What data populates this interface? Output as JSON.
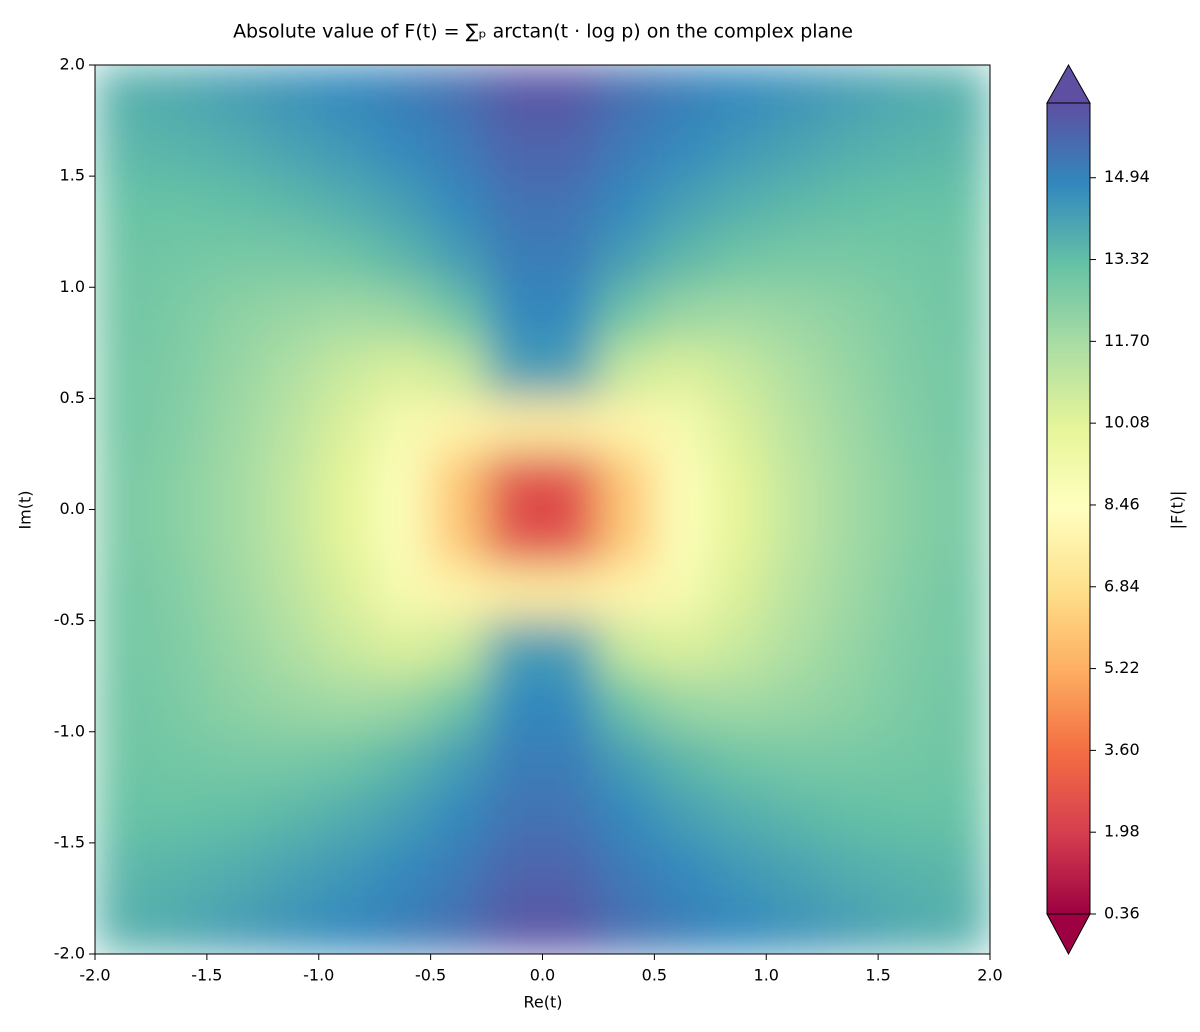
{
  "chart_data": {
    "type": "heatmap",
    "title": "Absolute value of F(t) = ∑ₚ arctan(t · log p) on the complex plane",
    "x_label": "Re(t)",
    "y_label": "Im(t)",
    "colorbar_label": "|F(t)|",
    "x": [
      -1.875,
      -1.625,
      -1.375,
      -1.125,
      -0.875,
      -0.625,
      -0.375,
      -0.125,
      0.125,
      0.375,
      0.625,
      0.875,
      1.125,
      1.375,
      1.625,
      1.875
    ],
    "y": [
      1.875,
      1.625,
      1.375,
      1.125,
      0.875,
      0.625,
      0.375,
      0.125,
      -0.125,
      -0.375,
      -0.625,
      -0.875,
      -1.125,
      -1.375,
      -1.625,
      -1.875
    ],
    "z": [
      [
        13.7,
        13.9,
        14.2,
        14.5,
        14.8,
        15.1,
        15.5,
        16.2,
        16.2,
        15.5,
        15.1,
        14.8,
        14.5,
        14.2,
        13.9,
        13.7
      ],
      [
        13.5,
        13.6,
        13.8,
        14.1,
        14.4,
        14.8,
        15.2,
        15.8,
        15.8,
        15.2,
        14.8,
        14.4,
        14.1,
        13.8,
        13.6,
        13.5
      ],
      [
        13.2,
        13.2,
        13.3,
        13.5,
        13.8,
        14.2,
        14.8,
        15.4,
        15.4,
        14.8,
        14.2,
        13.8,
        13.5,
        13.3,
        13.2,
        13.2
      ],
      [
        13.0,
        12.9,
        12.8,
        12.8,
        13.0,
        13.5,
        14.2,
        15.1,
        15.1,
        14.2,
        13.5,
        13.0,
        12.8,
        12.8,
        12.9,
        13.0
      ],
      [
        13.0,
        12.7,
        12.3,
        12.0,
        11.8,
        12.0,
        13.0,
        14.8,
        14.8,
        13.0,
        12.0,
        11.8,
        12.0,
        12.3,
        12.7,
        13.0
      ],
      [
        12.9,
        12.6,
        12.1,
        11.5,
        10.8,
        10.3,
        10.8,
        14.2,
        14.2,
        10.8,
        10.3,
        10.8,
        11.5,
        12.1,
        12.6,
        12.9
      ],
      [
        12.9,
        12.5,
        11.9,
        11.2,
        10.3,
        9.0,
        7.8,
        7.5,
        7.5,
        7.8,
        9.0,
        10.3,
        11.2,
        11.9,
        12.5,
        12.9
      ],
      [
        12.8,
        12.4,
        11.8,
        11.0,
        10.0,
        8.6,
        6.0,
        2.5,
        2.5,
        6.0,
        8.6,
        10.0,
        11.0,
        11.8,
        12.4,
        12.8
      ],
      [
        12.8,
        12.4,
        11.8,
        11.0,
        10.0,
        8.6,
        6.0,
        2.5,
        2.5,
        6.0,
        8.6,
        10.0,
        11.0,
        11.8,
        12.4,
        12.8
      ],
      [
        12.9,
        12.5,
        11.9,
        11.2,
        10.3,
        9.0,
        7.8,
        7.5,
        7.5,
        7.8,
        9.0,
        10.3,
        11.2,
        11.9,
        12.5,
        12.9
      ],
      [
        12.9,
        12.6,
        12.1,
        11.5,
        10.8,
        10.3,
        10.8,
        14.2,
        14.2,
        10.8,
        10.3,
        10.8,
        11.5,
        12.1,
        12.6,
        12.9
      ],
      [
        13.0,
        12.7,
        12.3,
        12.0,
        11.8,
        12.0,
        13.0,
        14.8,
        14.8,
        13.0,
        12.0,
        11.8,
        12.0,
        12.3,
        12.7,
        13.0
      ],
      [
        13.0,
        12.9,
        12.8,
        12.8,
        13.0,
        13.5,
        14.2,
        15.1,
        15.1,
        14.2,
        13.5,
        13.0,
        12.8,
        12.8,
        12.9,
        13.0
      ],
      [
        13.2,
        13.2,
        13.3,
        13.5,
        13.8,
        14.2,
        14.8,
        15.4,
        15.4,
        14.8,
        14.2,
        13.8,
        13.5,
        13.3,
        13.2,
        13.2
      ],
      [
        13.5,
        13.6,
        13.8,
        14.1,
        14.4,
        14.8,
        15.2,
        15.8,
        15.8,
        15.2,
        14.8,
        14.4,
        14.1,
        13.8,
        13.6,
        13.5
      ],
      [
        13.7,
        13.9,
        14.2,
        14.5,
        14.8,
        15.1,
        15.5,
        16.2,
        16.2,
        15.5,
        15.1,
        14.8,
        14.5,
        14.2,
        13.9,
        13.7
      ]
    ],
    "xlim": [
      -2,
      2
    ],
    "ylim": [
      -2,
      2
    ],
    "xticks": [
      {
        "value": -2,
        "label": "-2.0"
      },
      -1.5,
      {
        "value": -1,
        "label": "-1.0"
      },
      -0.5,
      {
        "value": 0,
        "label": "0.0"
      },
      0.5,
      {
        "value": 1,
        "label": "1.0"
      },
      1.5,
      {
        "value": 2,
        "label": "2.0"
      }
    ],
    "yticks": [
      {
        "value": -2,
        "label": "-2.0"
      },
      -1.5,
      {
        "value": -1,
        "label": "-1.0"
      },
      -0.5,
      {
        "value": 0,
        "label": "0.0"
      },
      0.5,
      {
        "value": 1,
        "label": "1.0"
      },
      1.5,
      {
        "value": 2,
        "label": "2.0"
      }
    ],
    "clim": [
      0.36,
      16.42
    ],
    "cticks": [
      0.36,
      1.98,
      {
        "value": 3.6,
        "label": "3.60"
      },
      5.22,
      6.84,
      8.46,
      10.08,
      {
        "value": 11.7,
        "label": "11.70"
      },
      13.32,
      14.94
    ],
    "colormap": [
      "#9e0142",
      "#d53e4f",
      "#f46d43",
      "#fdae61",
      "#fee08b",
      "#ffffbf",
      "#e6f598",
      "#abdda4",
      "#66c2a5",
      "#3288bd",
      "#5e4fa2"
    ],
    "colorbar_extend": "both"
  }
}
